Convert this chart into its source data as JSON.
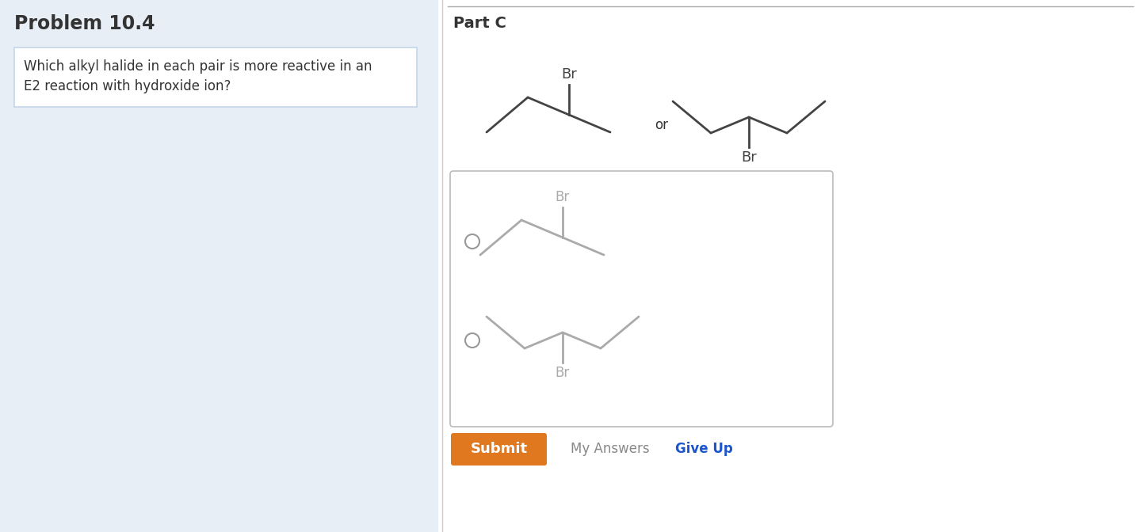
{
  "left_bg_color": "#e8eef5",
  "right_bg_color": "#ffffff",
  "problem_title": "Problem 10.4",
  "question_text_line1": "Which alkyl halide in each pair is more reactive in an",
  "question_text_line2": "E2 reaction with hydroxide ion?",
  "question_box_border": "#c5d5e8",
  "question_box_fill": "#ffffff",
  "part_c_label": "Part C",
  "or_text": "or",
  "submit_text": "Submit",
  "submit_bg": "#e07820",
  "submit_text_color": "#ffffff",
  "my_answers_text": "My Answers",
  "give_up_text": "Give Up",
  "give_up_color": "#1a55cc",
  "answer_box_border": "#bbbbbb",
  "line_color": "#444444",
  "text_color": "#333333",
  "radio_color": "#999999",
  "divider_color": "#cccccc",
  "top_line_color": "#aaaaaa"
}
